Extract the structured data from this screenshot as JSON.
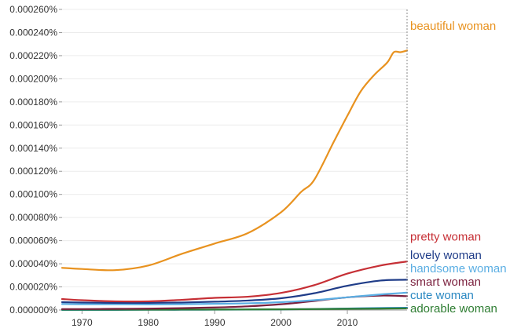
{
  "chart_data": {
    "type": "line",
    "title": "",
    "xlabel": "",
    "ylabel": "",
    "xlim": [
      1967,
      2019
    ],
    "ylim": [
      0,
      0.00026
    ],
    "x_ticks": [
      1970,
      1980,
      1990,
      2000,
      2010
    ],
    "x_tick_labels": [
      "1970",
      "1980",
      "1990",
      "2000",
      "2010"
    ],
    "y_ticks": [
      0,
      2e-05,
      4e-05,
      6e-05,
      8e-05,
      0.0001,
      0.00012,
      0.00014,
      0.00016,
      0.00018,
      0.0002,
      0.00022,
      0.00024,
      0.00026
    ],
    "y_tick_labels": [
      "0.000000%",
      "0.000020%",
      "0.000040%",
      "0.000060%",
      "0.000080%",
      "0.000100%",
      "0.000120%",
      "0.000140%",
      "0.000160%",
      "0.000180%",
      "0.000200%",
      "0.000220%",
      "0.000240%",
      "0.000260%"
    ],
    "grid": true,
    "legend": "right-end labels",
    "series": [
      {
        "name": "beautiful woman",
        "color": "#e8921f",
        "x": [
          1967,
          1970,
          1975,
          1980,
          1985,
          1990,
          1995,
          2000,
          2003,
          2005,
          2008,
          2010,
          2012,
          2014,
          2016,
          2017,
          2018,
          2019
        ],
        "values": [
          3.65e-05,
          3.55e-05,
          3.45e-05,
          3.85e-05,
          4.85e-05,
          5.75e-05,
          6.65e-05,
          8.45e-05,
          0.000102,
          0.0001125,
          0.000146,
          0.000168,
          0.000189,
          0.000203,
          0.000214,
          0.000223,
          0.000223,
          0.0002245
        ]
      },
      {
        "name": "pretty woman",
        "color": "#c62f35",
        "x": [
          1967,
          1970,
          1975,
          1980,
          1985,
          1990,
          1995,
          2000,
          2005,
          2010,
          2015,
          2019
        ],
        "values": [
          9.5e-06,
          8.5e-06,
          7.5e-06,
          7.5e-06,
          8.8e-06,
          1.05e-05,
          1.15e-05,
          1.48e-05,
          2.15e-05,
          3.15e-05,
          3.85e-05,
          4.2e-05
        ]
      },
      {
        "name": "lovely woman",
        "color": "#1f3c88",
        "x": [
          1967,
          1970,
          1975,
          1980,
          1985,
          1990,
          1995,
          2000,
          2005,
          2010,
          2015,
          2019
        ],
        "values": [
          6.8e-06,
          6.5e-06,
          6.2e-06,
          6.2e-06,
          6.5e-06,
          7.2e-06,
          8.2e-06,
          1.02e-05,
          1.45e-05,
          2.1e-05,
          2.55e-05,
          2.62e-05
        ]
      },
      {
        "name": "handsome woman",
        "color": "#5aaee3",
        "x": [
          1967,
          1970,
          1975,
          1980,
          1985,
          1990,
          1995,
          2000,
          2005,
          2010,
          2015,
          2019
        ],
        "values": [
          5.2e-06,
          5e-06,
          5e-06,
          4.8e-06,
          5e-06,
          5.4e-06,
          5.8e-06,
          6.8e-06,
          8.5e-06,
          1.1e-05,
          1.35e-05,
          1.5e-05
        ]
      },
      {
        "name": "smart woman",
        "color": "#7a1f3d",
        "x": [
          1967,
          1970,
          1975,
          1980,
          1985,
          1990,
          1995,
          2000,
          2005,
          2010,
          2015,
          2019
        ],
        "values": [
          8e-07,
          8e-07,
          1e-06,
          1.2e-06,
          1.6e-06,
          2.2e-06,
          3.2e-06,
          5e-06,
          7.8e-06,
          1.1e-05,
          1.25e-05,
          1.2e-05
        ]
      },
      {
        "name": "adorable woman",
        "color": "#2e7d32",
        "x": [
          1967,
          1970,
          1975,
          1980,
          1985,
          1990,
          1995,
          2000,
          2005,
          2010,
          2015,
          2019
        ],
        "values": [
          3e-07,
          3e-07,
          3e-07,
          3e-07,
          4e-07,
          4e-07,
          5e-07,
          6e-07,
          8e-07,
          1e-06,
          1.2e-06,
          1.4e-06
        ]
      },
      {
        "name": "cute woman",
        "color": "#2a88c2",
        "x": [
          1967,
          1970,
          1975,
          1980,
          1985,
          1990,
          1995,
          2000,
          2005,
          2010,
          2015,
          2019
        ],
        "values": [
          1e-07,
          1e-07,
          1e-07,
          2e-07,
          2e-07,
          3e-07,
          4e-07,
          6e-07,
          9e-07,
          1.3e-06,
          1.7e-06,
          2e-06
        ]
      }
    ]
  }
}
